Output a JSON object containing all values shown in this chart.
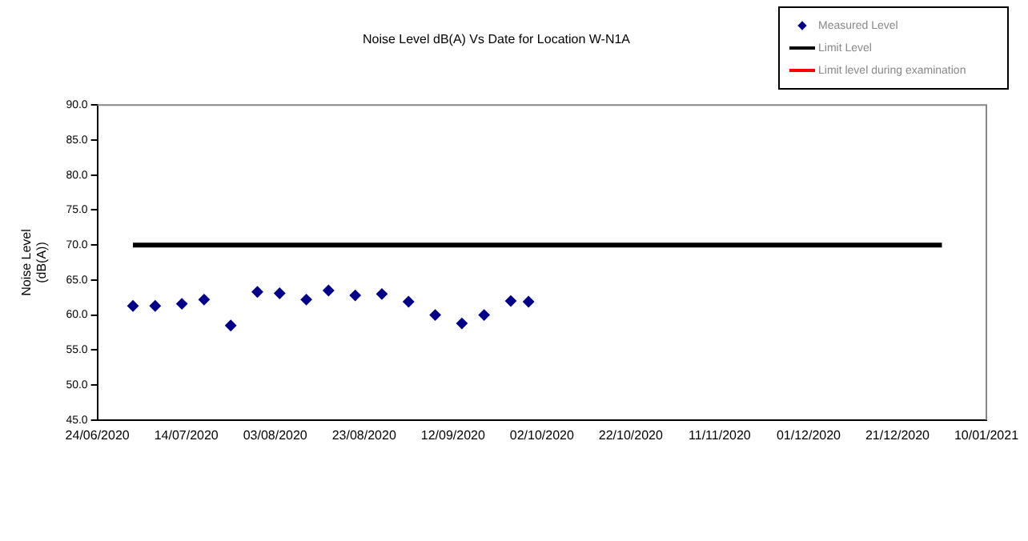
{
  "chart_data": {
    "type": "scatter",
    "title": "Noise Level dB(A) Vs Date for Location W-N1A",
    "ylabel": "Noise Level (dB(A))",
    "series": [
      {
        "name": "Measured Level",
        "type": "scatter",
        "color": "#00008b",
        "marker": "diamond",
        "x": [
          "2020-07-02",
          "2020-07-07",
          "2020-07-13",
          "2020-07-18",
          "2020-07-24",
          "2020-07-30",
          "2020-08-04",
          "2020-08-10",
          "2020-08-15",
          "2020-08-21",
          "2020-08-27",
          "2020-09-02",
          "2020-09-08",
          "2020-09-14",
          "2020-09-19",
          "2020-09-25",
          "2020-09-29"
        ],
        "values": [
          61.3,
          61.3,
          61.6,
          62.2,
          58.5,
          63.3,
          63.1,
          62.2,
          63.5,
          62.8,
          63.0,
          61.9,
          60.0,
          58.8,
          60.0,
          62.0,
          61.9
        ]
      },
      {
        "name": "Limit Level",
        "type": "line",
        "color": "#000000",
        "marker": "none",
        "x": [
          "2020-07-02",
          "2020-12-31"
        ],
        "values": [
          70,
          70
        ]
      },
      {
        "name": "Limit level during examination",
        "type": "line",
        "color": "#ff0000",
        "marker": "none"
      }
    ],
    "xlim": [
      "2020-06-24",
      "2021-01-10"
    ],
    "xticks": [
      {
        "value": "2020-06-24",
        "label": "24/06/2020"
      },
      {
        "value": "2020-07-14",
        "label": "14/07/2020"
      },
      {
        "value": "2020-08-03",
        "label": "03/08/2020"
      },
      {
        "value": "2020-08-23",
        "label": "23/08/2020"
      },
      {
        "value": "2020-09-12",
        "label": "12/09/2020"
      },
      {
        "value": "2020-10-02",
        "label": "02/10/2020"
      },
      {
        "value": "2020-10-22",
        "label": "22/10/2020"
      },
      {
        "value": "2020-11-11",
        "label": "11/11/2020"
      },
      {
        "value": "2020-12-01",
        "label": "01/12/2020"
      },
      {
        "value": "2020-12-21",
        "label": "21/12/2020"
      },
      {
        "value": "2021-01-10",
        "label": "10/01/2021"
      }
    ],
    "ylim": [
      45,
      90
    ],
    "yticks": [
      {
        "value": 45,
        "label": "45.0"
      },
      {
        "value": 50,
        "label": "50.0"
      },
      {
        "value": 55,
        "label": "55.0"
      },
      {
        "value": 60,
        "label": "60.0"
      },
      {
        "value": 65,
        "label": "65.0"
      },
      {
        "value": 70,
        "label": "70.0"
      },
      {
        "value": 75,
        "label": "75.0"
      },
      {
        "value": 80,
        "label": "80.0"
      },
      {
        "value": 85,
        "label": "85.0"
      },
      {
        "value": 90,
        "label": "90.0"
      }
    ],
    "grid": false,
    "legend": "top right"
  }
}
